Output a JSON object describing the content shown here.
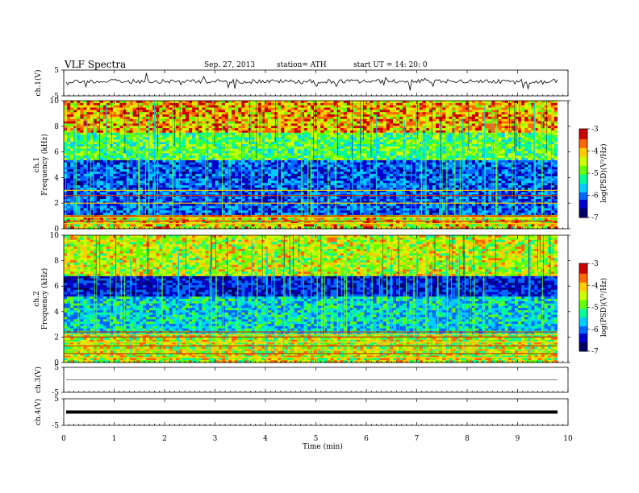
{
  "header": {
    "title": "VLF  Spectra",
    "date": "Sep. 27, 2013",
    "station": "station= ATH",
    "start": "start  UT  =   14: 20: 0"
  },
  "chart_data": [
    {
      "type": "line",
      "panel": "ch1-waveform",
      "ylabel": "ch.1(V)",
      "ylim": [
        -5,
        5
      ],
      "yticks": [
        "5",
        "-5"
      ],
      "xlim": [
        0,
        10
      ],
      "trace_level": 0.0,
      "trace_color": "#000000"
    },
    {
      "type": "heatmap",
      "panel": "ch1-spectrogram",
      "ylabel": "ch.1\nFrequency (kHz)",
      "ylabel_line1": "ch.1",
      "ylabel_line2": "Frequency  (kHz)",
      "ylim": [
        0,
        10
      ],
      "yticks": [
        "0",
        "2",
        "4",
        "6",
        "8",
        "10"
      ],
      "xlim": [
        0,
        9.8
      ],
      "colorbar": {
        "label": "log(PSD)(V²/Hz)",
        "ticks": [
          "-3",
          "-4",
          "-5",
          "-6",
          "-7"
        ],
        "range": [
          -7,
          -3
        ]
      }
    },
    {
      "type": "heatmap",
      "panel": "ch2-spectrogram",
      "ylabel_line1": "ch.2",
      "ylabel_line2": "Frequency  (kHz)",
      "ylim": [
        0,
        10
      ],
      "yticks": [
        "0",
        "2",
        "4",
        "6",
        "8",
        "10"
      ],
      "xlim": [
        0,
        9.8
      ],
      "colorbar": {
        "label": "log(PSD)(V²/Hz)",
        "ticks": [
          "-3",
          "-4",
          "-5",
          "-6",
          "-7"
        ],
        "range": [
          -7,
          -3
        ]
      }
    },
    {
      "type": "line",
      "panel": "ch3-waveform",
      "ylabel": "ch.3(V)",
      "ylim": [
        -5,
        5
      ],
      "yticks": [
        "5",
        "-5"
      ],
      "trace_level": 0.0
    },
    {
      "type": "line",
      "panel": "ch4-waveform",
      "ylabel": "ch.4(V)",
      "ylim": [
        -5,
        5
      ],
      "yticks": [
        "5",
        "-5"
      ],
      "trace_level": 0.0
    }
  ],
  "xaxis": {
    "label": "Time  (min)",
    "ticks": [
      "0",
      "1",
      "2",
      "3",
      "4",
      "5",
      "6",
      "7",
      "8",
      "9",
      "10"
    ],
    "range": [
      0,
      10
    ]
  },
  "colors": {
    "colormap": [
      "#000066",
      "#0000cc",
      "#0066ff",
      "#00ccff",
      "#00ff99",
      "#66ff00",
      "#ccff00",
      "#ffcc00",
      "#ff6600",
      "#cc0000"
    ]
  }
}
